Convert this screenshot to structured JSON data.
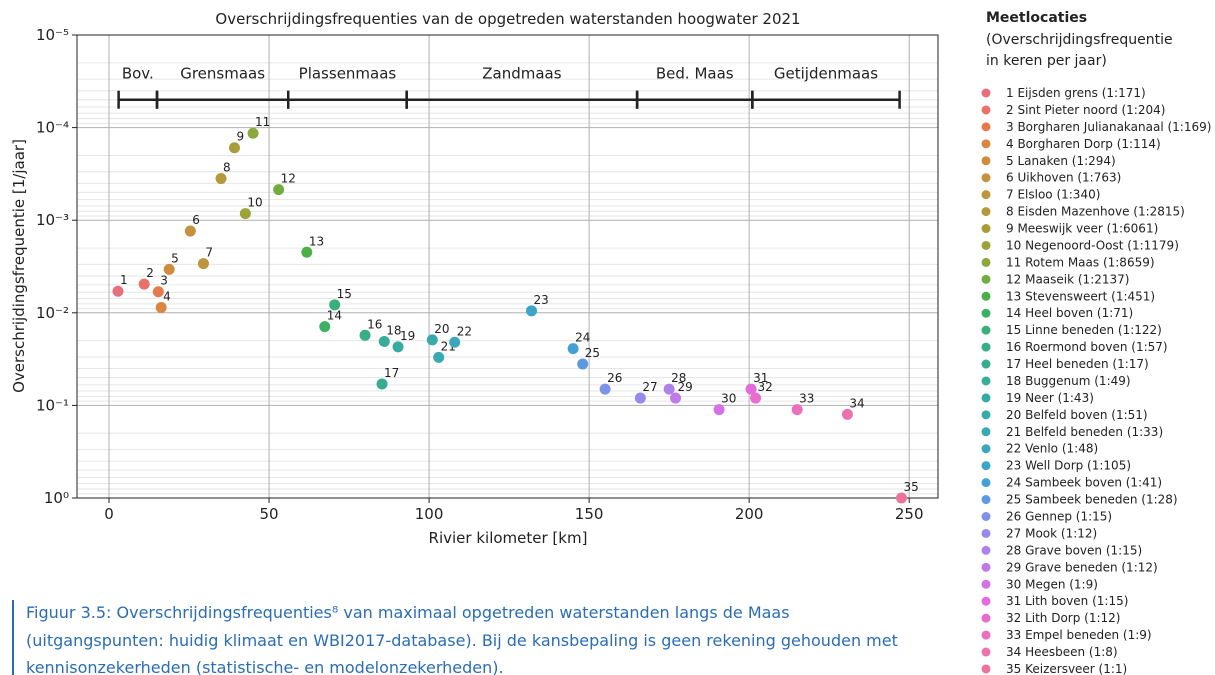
{
  "chart_data": {
    "type": "scatter",
    "title": "Overschrijdingsfrequenties van de opgetreden waterstanden hoogwater 2021",
    "xlabel": "Rivier kilometer [km]",
    "ylabel": "Overschrijdingsfrequentie [1/jaar]",
    "xlim": [
      -10,
      259
    ],
    "xticks": [
      0,
      50,
      100,
      150,
      200,
      250
    ],
    "ylim": [
      1e-05,
      1
    ],
    "log_y": true,
    "y_inverted": true,
    "yticks": [
      {
        "value": 1e-05,
        "label": "10⁻⁵"
      },
      {
        "value": 0.0001,
        "label": "10⁻⁴"
      },
      {
        "value": 0.001,
        "label": "10⁻³"
      },
      {
        "value": 0.01,
        "label": "10⁻²"
      },
      {
        "value": 0.1,
        "label": "10⁻¹"
      },
      {
        "value": 1,
        "label": "10⁰"
      }
    ],
    "grid": true,
    "x": [
      2.8,
      11,
      15.4,
      16.3,
      18.8,
      25.4,
      29.5,
      35,
      39.2,
      42.6,
      45,
      53,
      61.8,
      67.4,
      70.5,
      80,
      85.3,
      86,
      90.3,
      101,
      103,
      108,
      132,
      145,
      148,
      155,
      166,
      175,
      177,
      190.6,
      200.6,
      202,
      215,
      230.7,
      247.6
    ],
    "values": [
      0.00585,
      0.0049,
      0.00592,
      0.00877,
      0.0034,
      0.00131,
      0.00294,
      0.000355,
      0.000165,
      0.000848,
      0.000115,
      0.000468,
      0.00222,
      0.0141,
      0.0082,
      0.0175,
      0.0588,
      0.0204,
      0.0233,
      0.0196,
      0.0303,
      0.0208,
      0.00952,
      0.0244,
      0.0357,
      0.0667,
      0.0833,
      0.0667,
      0.0833,
      0.111,
      0.0667,
      0.0833,
      0.111,
      0.125,
      1
    ],
    "point_labels": [
      "1",
      "2",
      "3",
      "4",
      "5",
      "6",
      "7",
      "8",
      "9",
      "10",
      "11",
      "12",
      "13",
      "14",
      "15",
      "16",
      "17",
      "18",
      "19",
      "20",
      "21",
      "22",
      "23",
      "24",
      "25",
      "26",
      "27",
      "28",
      "29",
      "30",
      "31",
      "32",
      "33",
      "34",
      "35"
    ],
    "colors": [
      "#e8707e",
      "#e9716a",
      "#e47a4e",
      "#db8540",
      "#d08c3e",
      "#c6903c",
      "#bd953b",
      "#b39a3a",
      "#a89e39",
      "#9ba339",
      "#8ba83a",
      "#73ad3f",
      "#4bb147",
      "#3bb067",
      "#38b07a",
      "#37ae87",
      "#36ad91",
      "#36ac99",
      "#37aba2",
      "#38aaab",
      "#39a9b4",
      "#3aa7bd",
      "#3ca5c9",
      "#44a1d6",
      "#5b9ae3",
      "#7d93e8",
      "#978be9",
      "#ad83e9",
      "#c07ae8",
      "#d670e6",
      "#e56ade",
      "#ea6ccd",
      "#ec6fbd",
      "#ed71ad",
      "#ee739c"
    ],
    "section_level": 5e-05,
    "sections": [
      {
        "label": "Bov.",
        "start": 3,
        "end": 15
      },
      {
        "label": "Grensmaas",
        "start": 15,
        "end": 56
      },
      {
        "label": "Plassenmaas",
        "start": 56,
        "end": 93
      },
      {
        "label": "Zandmaas",
        "start": 93,
        "end": 165
      },
      {
        "label": "Bed. Maas",
        "start": 165,
        "end": 201
      },
      {
        "label": "Getijdenmaas",
        "start": 201,
        "end": 247
      }
    ],
    "legend_title": [
      "Meetlocaties",
      "(Overschrijdingsfrequentie",
      "in keren per jaar)"
    ],
    "legend_entries": [
      "1 Eijsden grens (1:171)",
      "2 Sint Pieter noord (1:204)",
      "3 Borgharen Julianakanaal (1:169)",
      "4 Borgharen Dorp (1:114)",
      "5 Lanaken (1:294)",
      "6 Uikhoven (1:763)",
      "7 Elsloo (1:340)",
      "8 Eisden Mazenhove (1:2815)",
      "9 Meeswijk veer (1:6061)",
      "10 Negenoord-Oost (1:1179)",
      "11 Rotem Maas (1:8659)",
      "12 Maaseik (1:2137)",
      "13 Stevensweert (1:451)",
      "14 Heel boven (1:71)",
      "15 Linne beneden (1:122)",
      "16 Roermond boven (1:57)",
      "17 Heel beneden (1:17)",
      "18 Buggenum (1:49)",
      "19 Neer (1:43)",
      "20 Belfeld boven (1:51)",
      "21 Belfeld beneden (1:33)",
      "22 Venlo (1:48)",
      "23 Well Dorp (1:105)",
      "24 Sambeek boven (1:41)",
      "25 Sambeek beneden (1:28)",
      "26 Gennep (1:15)",
      "27 Mook (1:12)",
      "28 Grave boven (1:15)",
      "29 Grave beneden (1:12)",
      "30 Megen (1:9)",
      "31 Lith boven (1:15)",
      "32 Lith Dorp (1:12)",
      "33 Empel beneden (1:9)",
      "34 Heesbeen (1:8)",
      "35 Keizersveer (1:1)"
    ]
  },
  "caption": [
    "Figuur 3.5: Overschrijdingsfrequenties⁸ van maximaal opgetreden waterstanden langs de Maas",
    "(uitgangspunten: huidig klimaat en WBI2017-database). Bij de kansbepaling is geen rekening gehouden met",
    "kennisonzekerheden (statistische- en modelonzekerheden)."
  ]
}
